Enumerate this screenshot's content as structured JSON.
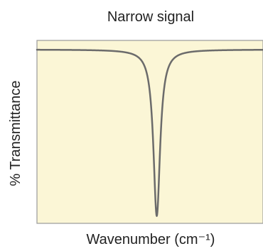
{
  "chart_data": {
    "type": "line",
    "title": "Narrow signal",
    "xlabel": "Wavenumber (cm⁻¹)",
    "ylabel": "% Transmittance",
    "grid": false,
    "legend": "none",
    "axis_tick_labels": false,
    "baseline": 0.95,
    "peak_center": 0.53,
    "peak_min": 0.04,
    "peak_width": 0.018,
    "colors": {
      "plot_background": "#fbf6d6",
      "frame": "#9a9a9a",
      "line": "#6b6b6b"
    }
  }
}
